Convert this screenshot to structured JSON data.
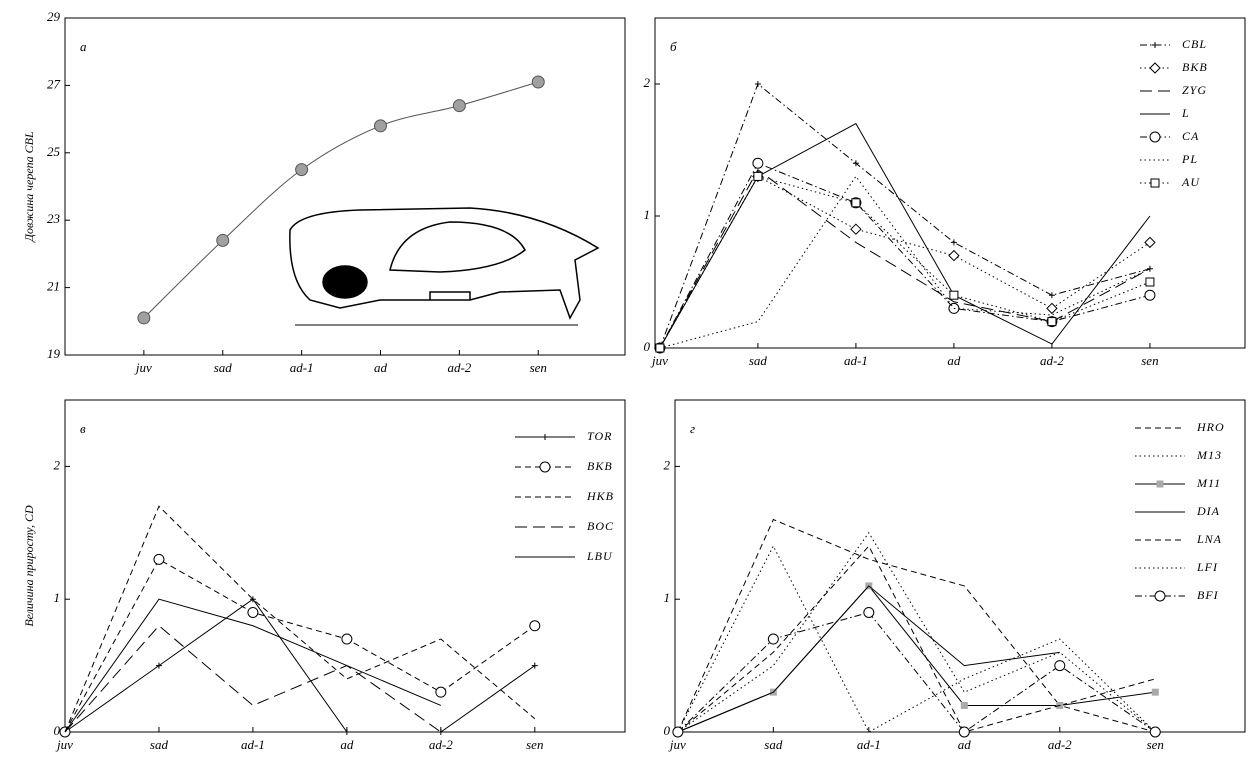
{
  "chart_data": [
    {
      "type": "line",
      "label": "а",
      "ylabel": "Довжина черепа  CBL",
      "categories": [
        "juv",
        "sad",
        "ad-1",
        "ad",
        "ad-2",
        "sen"
      ],
      "values": [
        20.1,
        22.4,
        24.5,
        25.8,
        26.4,
        27.1
      ],
      "color": "#555555",
      "marker_color": "#a0a0a0",
      "ylim": [
        19,
        29
      ],
      "yticks": [
        19,
        21,
        23,
        25,
        27,
        29
      ]
    },
    {
      "type": "multiline",
      "label": "б",
      "categories": [
        "juv",
        "sad",
        "ad-1",
        "ad",
        "ad-2",
        "sen"
      ],
      "ylim": [
        0,
        2.5
      ],
      "yticks": [
        0,
        1,
        2
      ],
      "series": [
        {
          "name": "CBL",
          "color": "#000000",
          "dash": "dashdot",
          "marker": "plus",
          "values": [
            0,
            2.0,
            1.4,
            0.8,
            0.4,
            0.6
          ]
        },
        {
          "name": "BKB",
          "color": "#000000",
          "dash": "dot",
          "marker": "diamond",
          "values": [
            0,
            1.3,
            0.9,
            0.7,
            0.3,
            0.8
          ]
        },
        {
          "name": "ZYG",
          "color": "#000000",
          "dash": "longdash",
          "marker": "none",
          "values": [
            0,
            1.35,
            0.8,
            0.35,
            0.2,
            0.6
          ]
        },
        {
          "name": "L",
          "color": "#000000",
          "dash": "solid",
          "marker": "none",
          "values": [
            0,
            1.3,
            1.7,
            0.4,
            0.03,
            1.0
          ]
        },
        {
          "name": "CA",
          "color": "#000000",
          "dash": "dashdot",
          "marker": "circle",
          "values": [
            0,
            1.4,
            1.1,
            0.3,
            0.2,
            0.4
          ]
        },
        {
          "name": "PL",
          "color": "#000000",
          "dash": "dot",
          "marker": "none",
          "values": [
            0,
            0.2,
            1.3,
            0.3,
            0.25,
            0.6
          ]
        },
        {
          "name": "AU",
          "color": "#000000",
          "dash": "dot",
          "marker": "square",
          "values": [
            0,
            1.3,
            1.1,
            0.4,
            0.2,
            0.5
          ]
        }
      ]
    },
    {
      "type": "multiline",
      "label": "в",
      "ylabel": "Величина приросту,  CD",
      "categories": [
        "juv",
        "sad",
        "ad-1",
        "ad",
        "ad-2",
        "sen"
      ],
      "ylim": [
        0,
        2.5
      ],
      "yticks": [
        0,
        1,
        2
      ],
      "series": [
        {
          "name": "TOR",
          "color": "#000000",
          "dash": "solid",
          "marker": "plus",
          "values": [
            0,
            0.5,
            1.0,
            0,
            0,
            0.5
          ]
        },
        {
          "name": "BKB",
          "color": "#000000",
          "dash": "dash",
          "marker": "circle",
          "values": [
            0,
            1.3,
            0.9,
            0.7,
            0.3,
            0.8
          ]
        },
        {
          "name": "HKB",
          "color": "#000000",
          "dash": "dash",
          "marker": "none",
          "values": [
            0,
            1.7,
            1.0,
            0.4,
            0.7,
            0.1
          ]
        },
        {
          "name": "BOC",
          "color": "#000000",
          "dash": "longdash",
          "marker": "none",
          "values": [
            0,
            0.8,
            0.2,
            0.5,
            0.0,
            null
          ]
        },
        {
          "name": "LBU",
          "color": "#000000",
          "dash": "solid",
          "marker": "none",
          "values": [
            0,
            1.0,
            0.8,
            0.5,
            0.2,
            null
          ]
        }
      ]
    },
    {
      "type": "multiline",
      "label": "г",
      "categories": [
        "juv",
        "sad",
        "ad-1",
        "ad",
        "ad-2",
        "sen"
      ],
      "ylim": [
        0,
        2.5
      ],
      "yticks": [
        0,
        1,
        2
      ],
      "series": [
        {
          "name": "HRO",
          "color": "#000000",
          "dash": "dash",
          "marker": "none",
          "values": [
            0,
            1.6,
            1.3,
            1.1,
            0.2,
            0.4
          ]
        },
        {
          "name": "M13",
          "color": "#000000",
          "dash": "dot",
          "marker": "none",
          "values": [
            0,
            1.4,
            0,
            0.4,
            0.7,
            0
          ]
        },
        {
          "name": "M11",
          "color": "#000000",
          "dash": "solid",
          "marker": "greysquare",
          "values": [
            0,
            0.3,
            1.1,
            0.2,
            0.2,
            0.3
          ]
        },
        {
          "name": "DIA",
          "color": "#000000",
          "dash": "solid",
          "marker": "none",
          "values": [
            0,
            0.3,
            1.1,
            0.5,
            0.6,
            null
          ]
        },
        {
          "name": "LNA",
          "color": "#000000",
          "dash": "dash",
          "marker": "none",
          "values": [
            0,
            0.6,
            1.4,
            0,
            0.2,
            0
          ]
        },
        {
          "name": "LFI",
          "color": "#000000",
          "dash": "dot",
          "marker": "none",
          "values": [
            0,
            0.5,
            1.5,
            0.3,
            0.6,
            0
          ]
        },
        {
          "name": "BFI",
          "color": "#000000",
          "dash": "dashdot",
          "marker": "circle",
          "values": [
            0,
            0.7,
            0.9,
            0,
            0.5,
            0
          ]
        }
      ]
    }
  ]
}
